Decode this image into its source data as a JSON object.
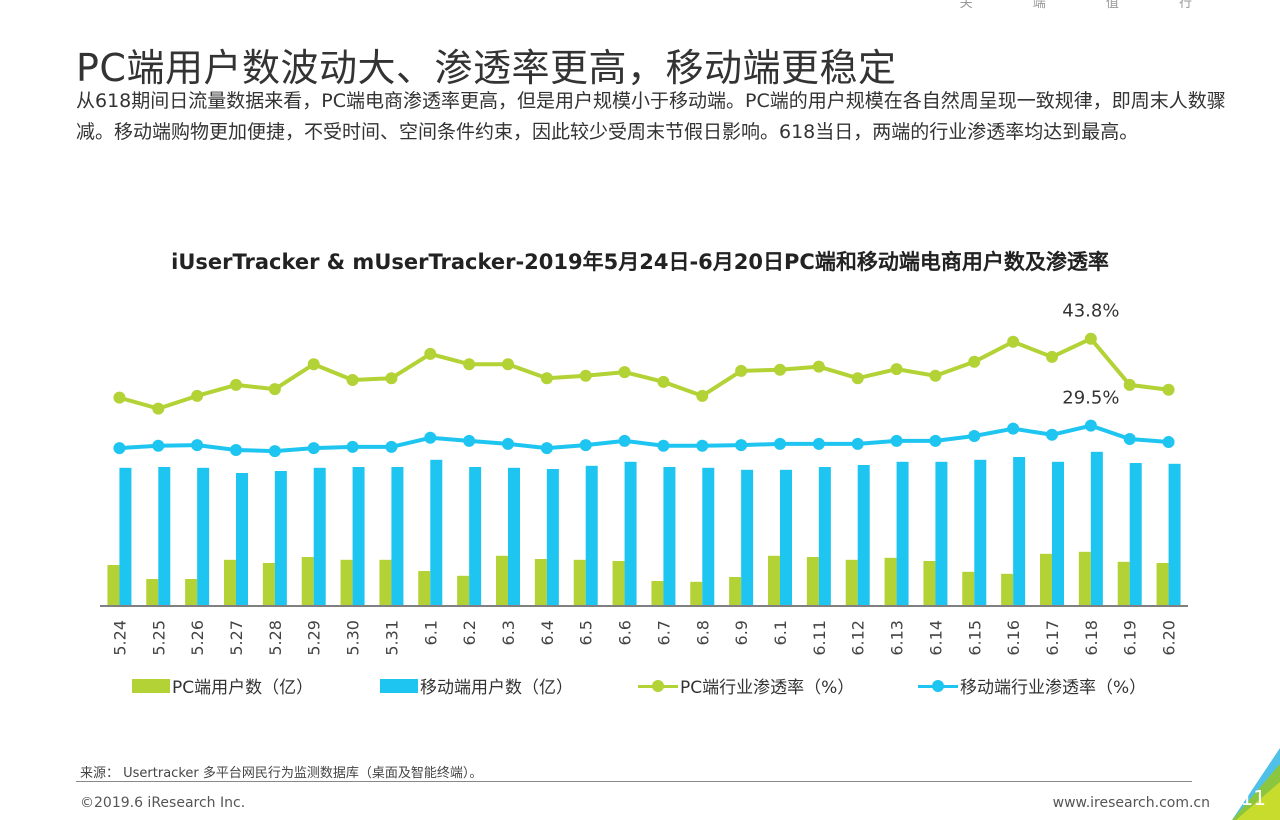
{
  "header": {
    "clipped_top_text": "关 端 值 行",
    "title": "PC端用户数波动大、渗透率更高，移动端更稳定"
  },
  "intro_text": "从618期间日流量数据来看，PC端电商渗透率更高，但是用户规模小于移动端。PC端的用户规模在各自然周呈现一致规律，即周末人数骤减。移动端购物更加便捷，不受时间、空间条件约束，因此较少受周末节假日影响。618当日，两端的行业渗透率均达到最高。",
  "colors": {
    "pc": "#b2d235",
    "mobile": "#1ec5f0",
    "axis": "#808080",
    "corner_blue": "#4fc1e9",
    "corner_green": "#8cc63f",
    "corner_yellow": "#c8dc2e"
  },
  "chart_data": {
    "type": "bar+line",
    "title": "iUserTracker & mUserTracker-2019年5月24日-6月20日PC端和移动端电商用户数及渗透率",
    "xlabel": "",
    "ylabel": "",
    "categories": [
      "5.24",
      "5.25",
      "5.26",
      "5.27",
      "5.28",
      "5.29",
      "5.30",
      "5.31",
      "6.1",
      "6.2",
      "6.3",
      "6.4",
      "6.5",
      "6.6",
      "6.7",
      "6.8",
      "6.9",
      "6.1",
      "6.11",
      "6.12",
      "6.13",
      "6.14",
      "6.15",
      "6.16",
      "6.17",
      "6.18",
      "6.19",
      "6.20"
    ],
    "bar_axis": {
      "unit": "亿",
      "ylim": [
        0,
        4.5
      ],
      "ticks_shown": false
    },
    "line_axis": {
      "unit": "%",
      "ylim": [
        0,
        50
      ],
      "ticks_shown": false
    },
    "series": [
      {
        "name": "PC端用户数（亿）",
        "type": "bar",
        "axis": "bar",
        "values": [
          1.0,
          0.65,
          0.65,
          1.13,
          1.05,
          1.2,
          1.13,
          1.13,
          0.85,
          0.73,
          1.23,
          1.15,
          1.13,
          1.1,
          0.6,
          0.58,
          0.7,
          1.23,
          1.2,
          1.13,
          1.18,
          1.1,
          0.83,
          0.78,
          1.28,
          1.33,
          1.08,
          1.05
        ]
      },
      {
        "name": "移动端用户数（亿）",
        "type": "bar",
        "axis": "bar",
        "values": [
          3.43,
          3.45,
          3.43,
          3.3,
          3.35,
          3.43,
          3.45,
          3.45,
          3.63,
          3.45,
          3.43,
          3.4,
          3.48,
          3.58,
          3.45,
          3.43,
          3.38,
          3.38,
          3.45,
          3.5,
          3.58,
          3.58,
          3.63,
          3.7,
          3.58,
          3.83,
          3.55,
          3.53
        ]
      },
      {
        "name": "PC端行业渗透率（%）",
        "type": "line",
        "axis": "line",
        "values": [
          34.1,
          32.3,
          34.4,
          36.2,
          35.5,
          39.6,
          37.0,
          37.3,
          41.3,
          39.6,
          39.6,
          37.3,
          37.7,
          38.3,
          36.7,
          34.4,
          38.5,
          38.7,
          39.2,
          37.3,
          38.8,
          37.7,
          40.0,
          43.3,
          40.8,
          43.8,
          36.2,
          35.4
        ]
      },
      {
        "name": "移动端行业渗透率（%）",
        "type": "line",
        "axis": "line",
        "values": [
          25.8,
          26.2,
          26.3,
          25.5,
          25.3,
          25.8,
          26.0,
          26.0,
          27.5,
          27.0,
          26.5,
          25.8,
          26.3,
          27.0,
          26.2,
          26.2,
          26.3,
          26.5,
          26.5,
          26.5,
          27.0,
          27.0,
          27.8,
          29.0,
          28.0,
          29.5,
          27.3,
          26.8
        ]
      }
    ],
    "annotations": [
      {
        "series": "PC端行业渗透率（%）",
        "category": "6.18",
        "text": "43.8%"
      },
      {
        "series": "移动端行业渗透率（%）",
        "category": "6.18",
        "text": "29.5%"
      }
    ],
    "legend": {
      "position": "bottom",
      "items": [
        "PC端用户数（亿）",
        "移动端用户数（亿）",
        "PC端行业渗透率（%）",
        "移动端行业渗透率（%）"
      ]
    },
    "grid": false
  },
  "footer": {
    "source": "来源： Usertracker 多平台网民行为监测数据库（桌面及智能终端）。",
    "copyright": "©2019.6 iResearch Inc.",
    "website": "www.iresearch.com.cn",
    "page_number": "11"
  }
}
